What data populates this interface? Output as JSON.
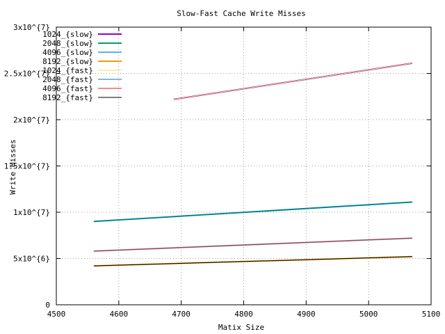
{
  "chart_data": {
    "type": "line",
    "title": "Slow-Fast Cache Write Misses",
    "xlabel": "Matix Size",
    "ylabel": "Write Misses",
    "xlim": [
      4500,
      5100
    ],
    "ylim": [
      0,
      30000000
    ],
    "x_ticks": [
      4500,
      4600,
      4700,
      4800,
      4900,
      5000,
      5100
    ],
    "x_tick_labels": [
      "4500",
      "4600",
      "4700",
      "4800",
      "4900",
      "5000",
      "5100"
    ],
    "y_ticks": [
      0,
      5000000,
      10000000,
      15000000,
      20000000,
      25000000,
      30000000
    ],
    "y_tick_labels": [
      "0",
      "5x10^{6}",
      "1x10^{7}",
      "1.5x10^{7}",
      "2x10^{7}",
      "2.5x10^{7}",
      "3x10^{7}"
    ],
    "grid": true,
    "legend_position": "top-left",
    "series": [
      {
        "name": "1024_{slow}",
        "color": "#9400d3",
        "width": 2,
        "x": [
          4688,
          5070
        ],
        "y": [
          22200000,
          26100000
        ]
      },
      {
        "name": "2048_{slow}",
        "color": "#009e73",
        "width": 2,
        "x": [
          4560,
          5070
        ],
        "y": [
          9000000,
          11100000
        ]
      },
      {
        "name": "4096_{slow}",
        "color": "#56b4e9",
        "width": 2,
        "x": [
          4560,
          5070
        ],
        "y": [
          5800000,
          7200000
        ]
      },
      {
        "name": "8192_{slow}",
        "color": "#e69f00",
        "width": 2,
        "x": [
          4560,
          5070
        ],
        "y": [
          4200000,
          5200000
        ]
      },
      {
        "name": "1024_{fast}",
        "color": "#f0e442",
        "width": 1,
        "x": [
          4688,
          5070
        ],
        "y": [
          22200000,
          26100000
        ]
      },
      {
        "name": "2048_{fast}",
        "color": "#0072b2",
        "width": 1,
        "x": [
          4560,
          5070
        ],
        "y": [
          9000000,
          11100000
        ]
      },
      {
        "name": "4096_{fast}",
        "color": "#e51e10",
        "width": 1,
        "x": [
          4560,
          5070
        ],
        "y": [
          5800000,
          7200000
        ]
      },
      {
        "name": "8192_{fast}",
        "color": "#000000",
        "width": 1,
        "x": [
          4560,
          5070
        ],
        "y": [
          4200000,
          5200000
        ]
      }
    ]
  }
}
